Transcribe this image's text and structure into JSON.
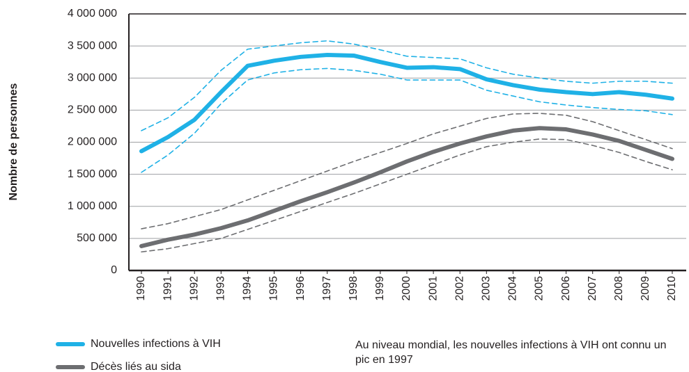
{
  "chart_data": {
    "type": "line",
    "y_label": "Nombre de personnes",
    "annotation": "Au niveau mondial, les nouvelles infections à VIH ont connu un pic en 1997",
    "categories": [
      "1990",
      "1991",
      "1992",
      "1993",
      "1994",
      "1995",
      "1996",
      "1997",
      "1998",
      "1999",
      "2000",
      "2001",
      "2002",
      "2003",
      "2004",
      "2005",
      "2006",
      "2007",
      "2008",
      "2009",
      "2010"
    ],
    "ylim": [
      0,
      4000000
    ],
    "yticks": [
      0,
      {
        "value": 500000,
        "label": "500 000"
      },
      {
        "value": 1000000,
        "label": "1 000 000"
      },
      {
        "value": 1500000,
        "label": "1 500 000"
      },
      {
        "value": 2000000,
        "label": "2 000 000"
      },
      {
        "value": 2500000,
        "label": "2 500 000"
      },
      {
        "value": 3000000,
        "label": "3 000 000"
      },
      {
        "value": 3500000,
        "label": "3 500 000"
      },
      {
        "value": 4000000,
        "label": "4 000 000"
      }
    ],
    "grid": true,
    "series": [
      {
        "name": "Nouvelles infections à VIH",
        "color": "#1fb1e6",
        "values": [
          1860000,
          2080000,
          2350000,
          2780000,
          3190000,
          3270000,
          3330000,
          3360000,
          3350000,
          3250000,
          3160000,
          3170000,
          3140000,
          2980000,
          2890000,
          2820000,
          2780000,
          2750000,
          2780000,
          2740000,
          2680000
        ],
        "upper": [
          2180000,
          2380000,
          2700000,
          3120000,
          3450000,
          3500000,
          3550000,
          3580000,
          3530000,
          3440000,
          3340000,
          3320000,
          3300000,
          3160000,
          3060000,
          3000000,
          2950000,
          2920000,
          2950000,
          2950000,
          2920000
        ],
        "lower": [
          1530000,
          1800000,
          2140000,
          2600000,
          2970000,
          3080000,
          3130000,
          3150000,
          3120000,
          3060000,
          2970000,
          2970000,
          2970000,
          2810000,
          2720000,
          2630000,
          2580000,
          2540000,
          2510000,
          2490000,
          2430000
        ]
      },
      {
        "name": "Décès liés au sida",
        "color": "#6d6e71",
        "values": [
          380000,
          480000,
          560000,
          660000,
          780000,
          930000,
          1080000,
          1220000,
          1370000,
          1530000,
          1700000,
          1850000,
          1980000,
          2090000,
          2180000,
          2220000,
          2200000,
          2120000,
          2020000,
          1880000,
          1740000
        ],
        "upper": [
          650000,
          730000,
          840000,
          950000,
          1100000,
          1250000,
          1400000,
          1550000,
          1700000,
          1840000,
          1980000,
          2130000,
          2250000,
          2370000,
          2440000,
          2450000,
          2420000,
          2320000,
          2180000,
          2040000,
          1900000
        ],
        "lower": [
          290000,
          340000,
          420000,
          500000,
          640000,
          780000,
          920000,
          1060000,
          1200000,
          1350000,
          1500000,
          1650000,
          1800000,
          1930000,
          2000000,
          2050000,
          2040000,
          1950000,
          1840000,
          1700000,
          1570000
        ]
      }
    ]
  }
}
